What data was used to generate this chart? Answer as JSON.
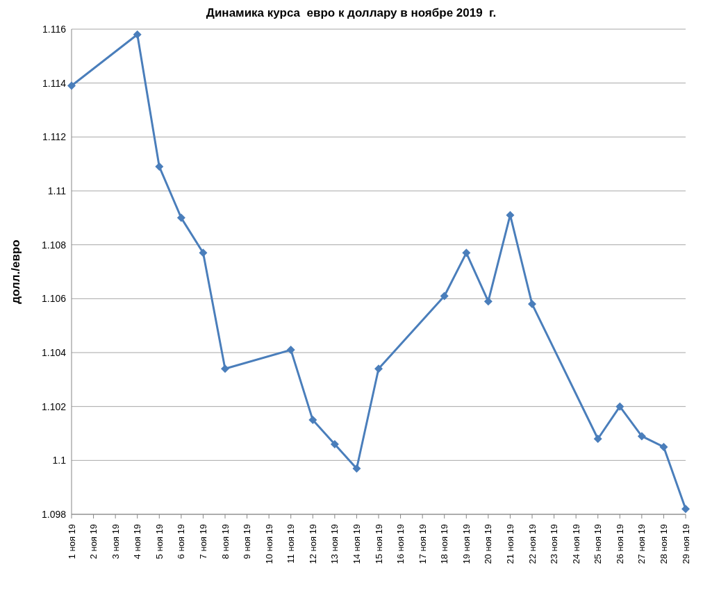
{
  "chart_data": {
    "type": "line",
    "title": "Динамика курса  евро к доллару в ноябре 2019  г.",
    "ylabel": "долл./евро",
    "categories": [
      "1 ноя 19",
      "2 ноя 19",
      "3 ноя 19",
      "4 ноя 19",
      "5 ноя 19",
      "6 ноя 19",
      "7 ноя 19",
      "8 ноя 19",
      "9 ноя 19",
      "10 ноя 19",
      "11 ноя 19",
      "12 ноя 19",
      "13 ноя 19",
      "14 ноя 19",
      "15 ноя 19",
      "16 ноя 19",
      "17 ноя 19",
      "18 ноя 19",
      "19 ноя 19",
      "20 ноя 19",
      "21 ноя 19",
      "22 ноя 19",
      "23 ноя 19",
      "24 ноя 19",
      "25 ноя 19",
      "26 ноя 19",
      "27 ноя 19",
      "28 ноя 19",
      "29 ноя 19"
    ],
    "series": [
      {
        "color": "#4a7ebb",
        "values": [
          1.1139,
          null,
          null,
          1.1158,
          1.1109,
          1.109,
          1.1077,
          1.1034,
          null,
          null,
          1.1041,
          1.1015,
          1.1006,
          1.0997,
          1.1034,
          null,
          null,
          1.1061,
          1.1077,
          1.1059,
          1.1091,
          1.1058,
          null,
          null,
          1.1008,
          1.102,
          1.1009,
          1.1005,
          1.0982
        ]
      }
    ],
    "ylim": [
      1.098,
      1.116
    ],
    "yticks": [
      1.098,
      1.1,
      1.102,
      1.104,
      1.106,
      1.108,
      1.11,
      1.112,
      1.114,
      1.116
    ],
    "grid": "y",
    "marker": "diamond",
    "line_style": "solid"
  }
}
